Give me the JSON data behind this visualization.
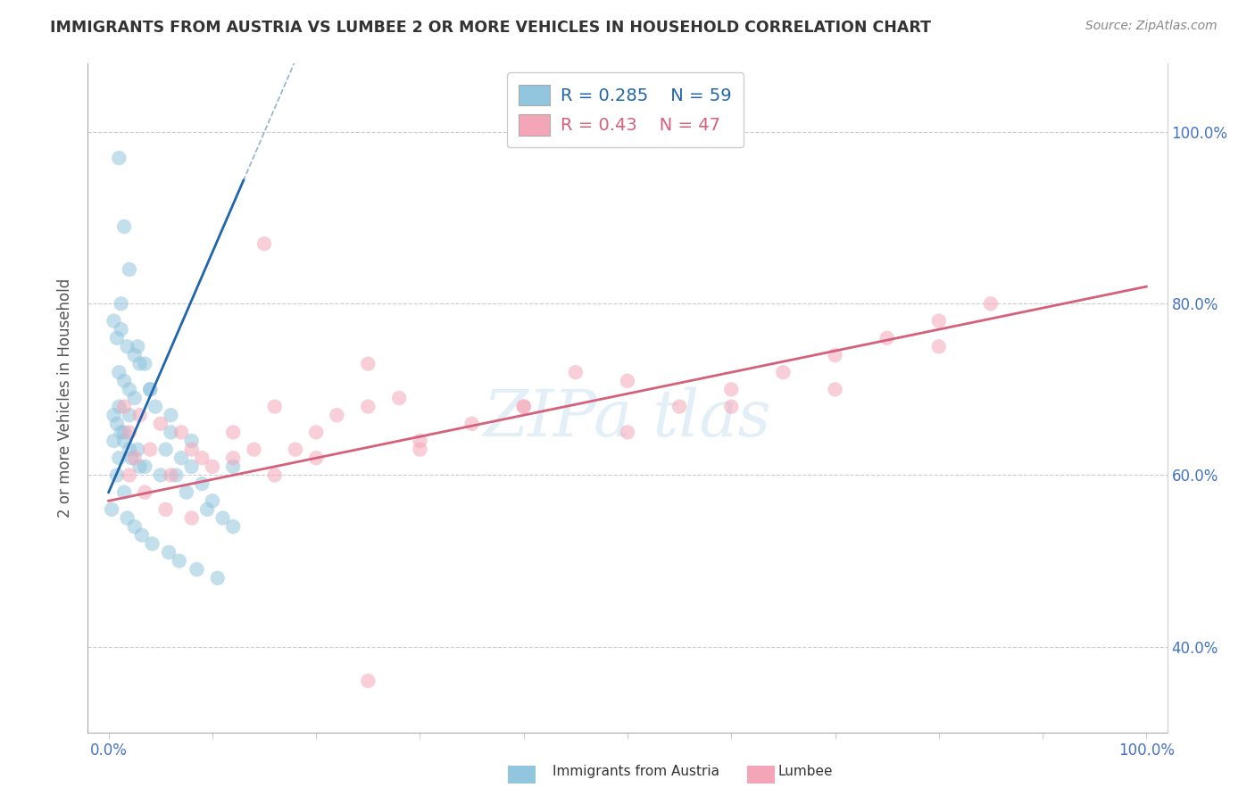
{
  "title": "IMMIGRANTS FROM AUSTRIA VS LUMBEE 2 OR MORE VEHICLES IN HOUSEHOLD CORRELATION CHART",
  "source": "Source: ZipAtlas.com",
  "ylabel": "2 or more Vehicles in Household",
  "R_blue": 0.285,
  "N_blue": 59,
  "R_pink": 0.43,
  "N_pink": 47,
  "blue_color": "#92c5de",
  "pink_color": "#f4a6b8",
  "blue_line_color": "#2166ac",
  "pink_line_color": "#d6607a",
  "xlim": [
    -2,
    102
  ],
  "ylim": [
    30,
    108
  ],
  "ytick_vals": [
    40,
    60,
    80,
    100
  ],
  "ytick_labels": [
    "40.0%",
    "60.0%",
    "80.0%",
    "100.0%"
  ],
  "xtick_vals": [
    0,
    10,
    20,
    30,
    40,
    50,
    60,
    70,
    80,
    90,
    100
  ],
  "blue_x": [
    1.0,
    1.5,
    2.0,
    0.5,
    1.2,
    0.8,
    1.8,
    2.5,
    3.0,
    1.0,
    1.5,
    2.0,
    2.5,
    1.0,
    0.5,
    0.8,
    1.2,
    1.5,
    2.0,
    2.2,
    3.0,
    3.5,
    4.0,
    2.0,
    1.5,
    2.8,
    3.5,
    5.0,
    4.5,
    6.0,
    5.5,
    7.0,
    8.0,
    6.5,
    9.0,
    7.5,
    10.0,
    9.5,
    11.0,
    12.0,
    0.5,
    1.0,
    0.8,
    1.5,
    0.3,
    1.8,
    2.5,
    3.2,
    4.2,
    5.8,
    6.8,
    8.5,
    10.5,
    1.2,
    2.8,
    4.0,
    6.0,
    8.0,
    12.0
  ],
  "blue_y": [
    97,
    89,
    84,
    78,
    77,
    76,
    75,
    74,
    73,
    72,
    71,
    70,
    69,
    68,
    67,
    66,
    65,
    64,
    63,
    62,
    61,
    73,
    70,
    67,
    65,
    63,
    61,
    60,
    68,
    65,
    63,
    62,
    61,
    60,
    59,
    58,
    57,
    56,
    55,
    54,
    64,
    62,
    60,
    58,
    56,
    55,
    54,
    53,
    52,
    51,
    50,
    49,
    48,
    80,
    75,
    70,
    67,
    64,
    61
  ],
  "pink_x": [
    1.5,
    2.0,
    2.5,
    3.0,
    4.0,
    5.0,
    6.0,
    7.0,
    8.0,
    9.0,
    10.0,
    12.0,
    14.0,
    16.0,
    18.0,
    20.0,
    22.0,
    25.0,
    28.0,
    30.0,
    35.0,
    40.0,
    45.0,
    50.0,
    55.0,
    60.0,
    65.0,
    70.0,
    75.0,
    80.0,
    85.0,
    2.0,
    3.5,
    5.5,
    8.0,
    12.0,
    16.0,
    20.0,
    25.0,
    30.0,
    40.0,
    50.0,
    60.0,
    70.0,
    80.0,
    15.0,
    25.0
  ],
  "pink_y": [
    68,
    65,
    62,
    67,
    63,
    66,
    60,
    65,
    63,
    62,
    61,
    65,
    63,
    68,
    63,
    62,
    67,
    73,
    69,
    64,
    66,
    68,
    72,
    71,
    68,
    70,
    72,
    74,
    76,
    78,
    80,
    60,
    58,
    56,
    55,
    62,
    60,
    65,
    68,
    63,
    68,
    65,
    68,
    70,
    75,
    87,
    36
  ],
  "blue_line_x": [
    0,
    13
  ],
  "blue_line_y_intercept": 58,
  "blue_line_slope": 2.8,
  "pink_line_x": [
    0,
    100
  ],
  "pink_line_y_start": 57,
  "pink_line_y_end": 82,
  "watermark": "ZIPa tlas"
}
